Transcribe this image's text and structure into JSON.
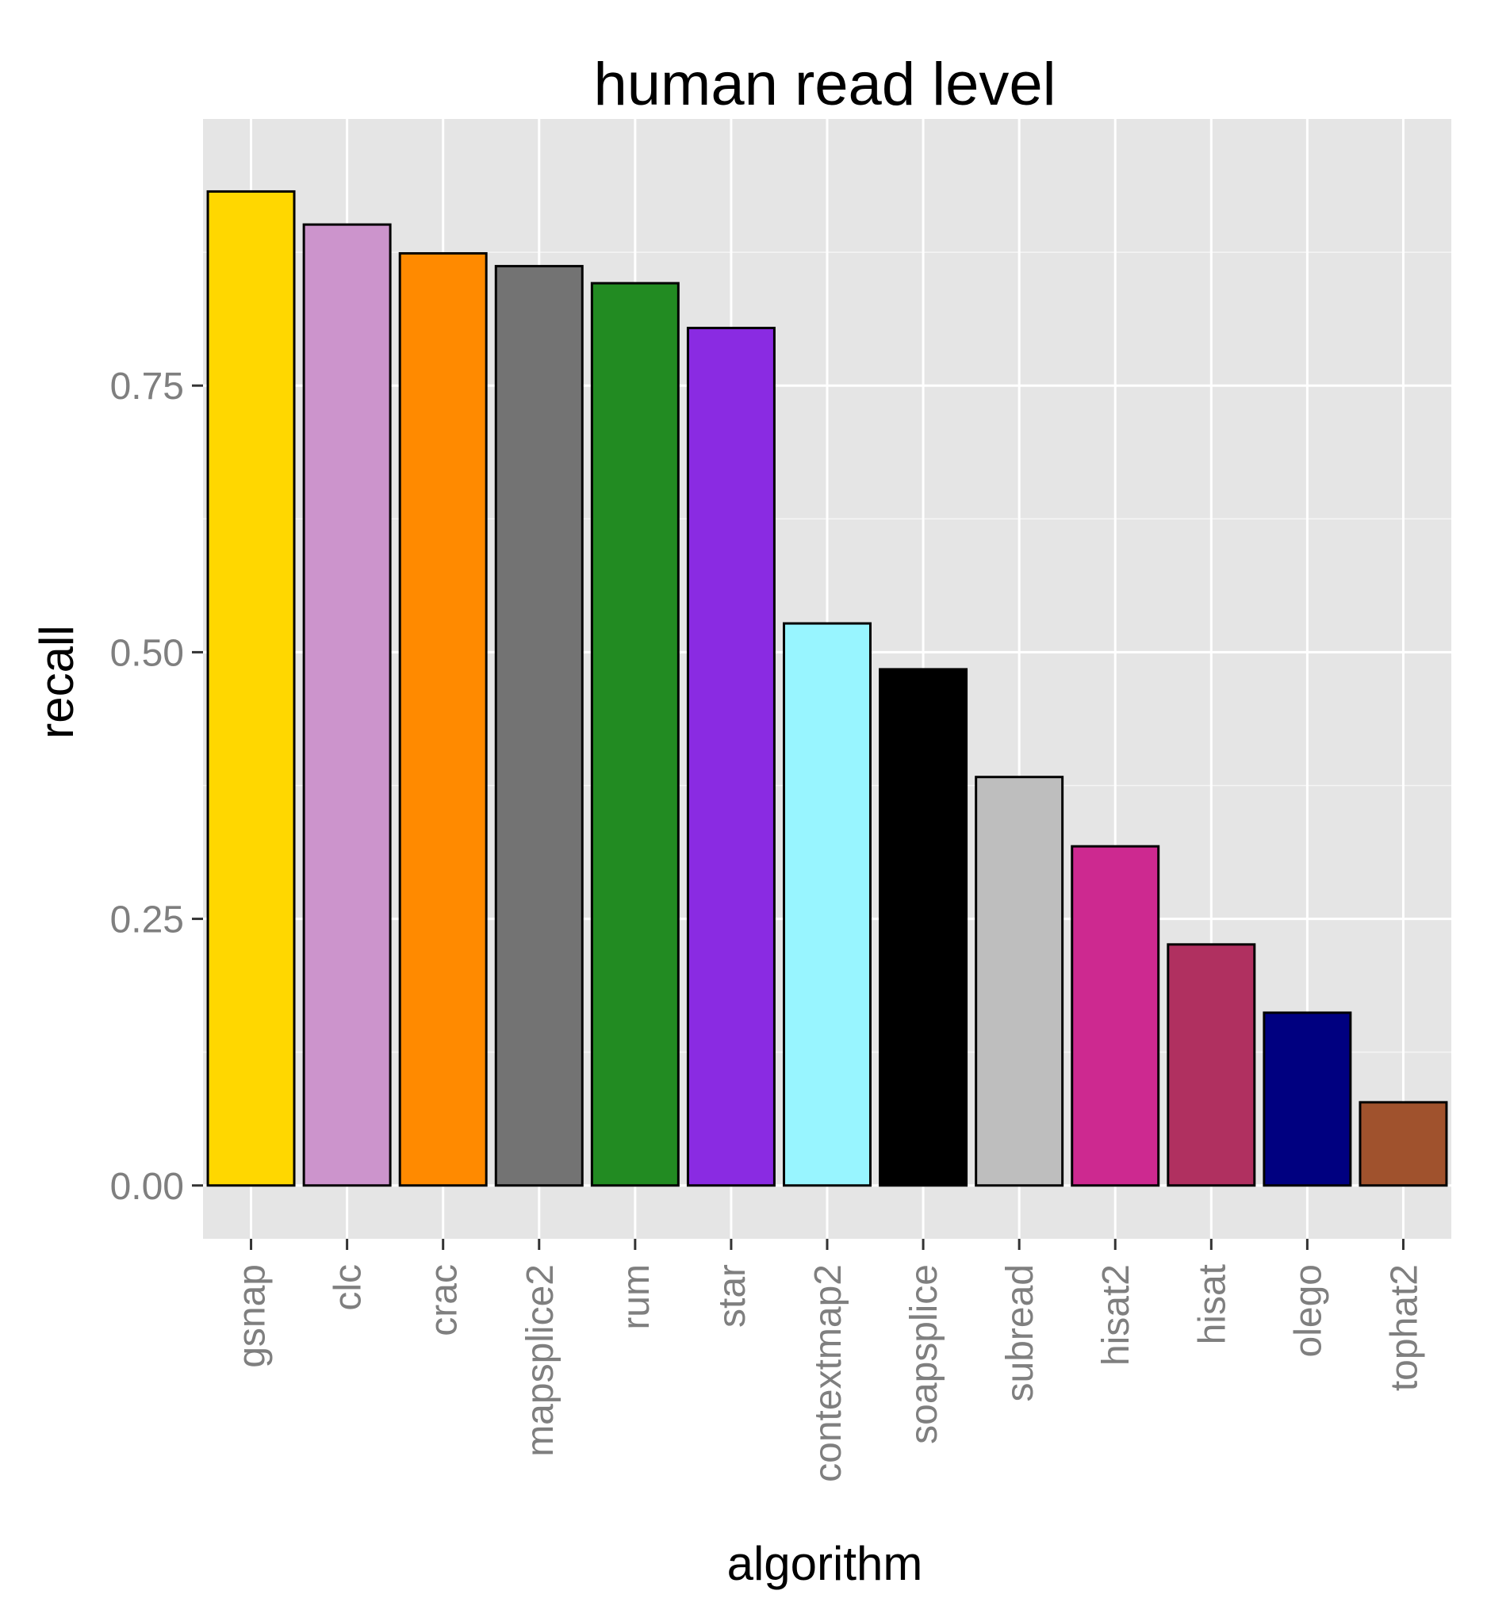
{
  "chart_data": {
    "type": "bar",
    "title": "human read level",
    "xlabel": "algorithm",
    "ylabel": "recall",
    "categories": [
      "gsnap",
      "clc",
      "crac",
      "mapsplice2",
      "rum",
      "star",
      "contextmap2",
      "soapsplice",
      "subread",
      "hisat2",
      "hisat",
      "olego",
      "tophat2"
    ],
    "values": [
      0.932,
      0.901,
      0.874,
      0.862,
      0.846,
      0.804,
      0.527,
      0.484,
      0.383,
      0.318,
      0.226,
      0.162,
      0.078
    ],
    "colors": [
      "#ffd700",
      "#cc94cc",
      "#ff8a00",
      "#737373",
      "#228b22",
      "#8a2be2",
      "#98f5ff",
      "#000000",
      "#bebebe",
      "#cd2990",
      "#b03060",
      "#000080",
      "#a0522d"
    ],
    "yticks": [
      "0.00",
      "0.25",
      "0.50",
      "0.75"
    ],
    "ylim": [
      -0.05,
      1.0
    ],
    "grid": true,
    "legend": "none",
    "panel_background": "#e5e5e5",
    "grid_color": "#ffffff",
    "bar_outline": "#000000"
  }
}
